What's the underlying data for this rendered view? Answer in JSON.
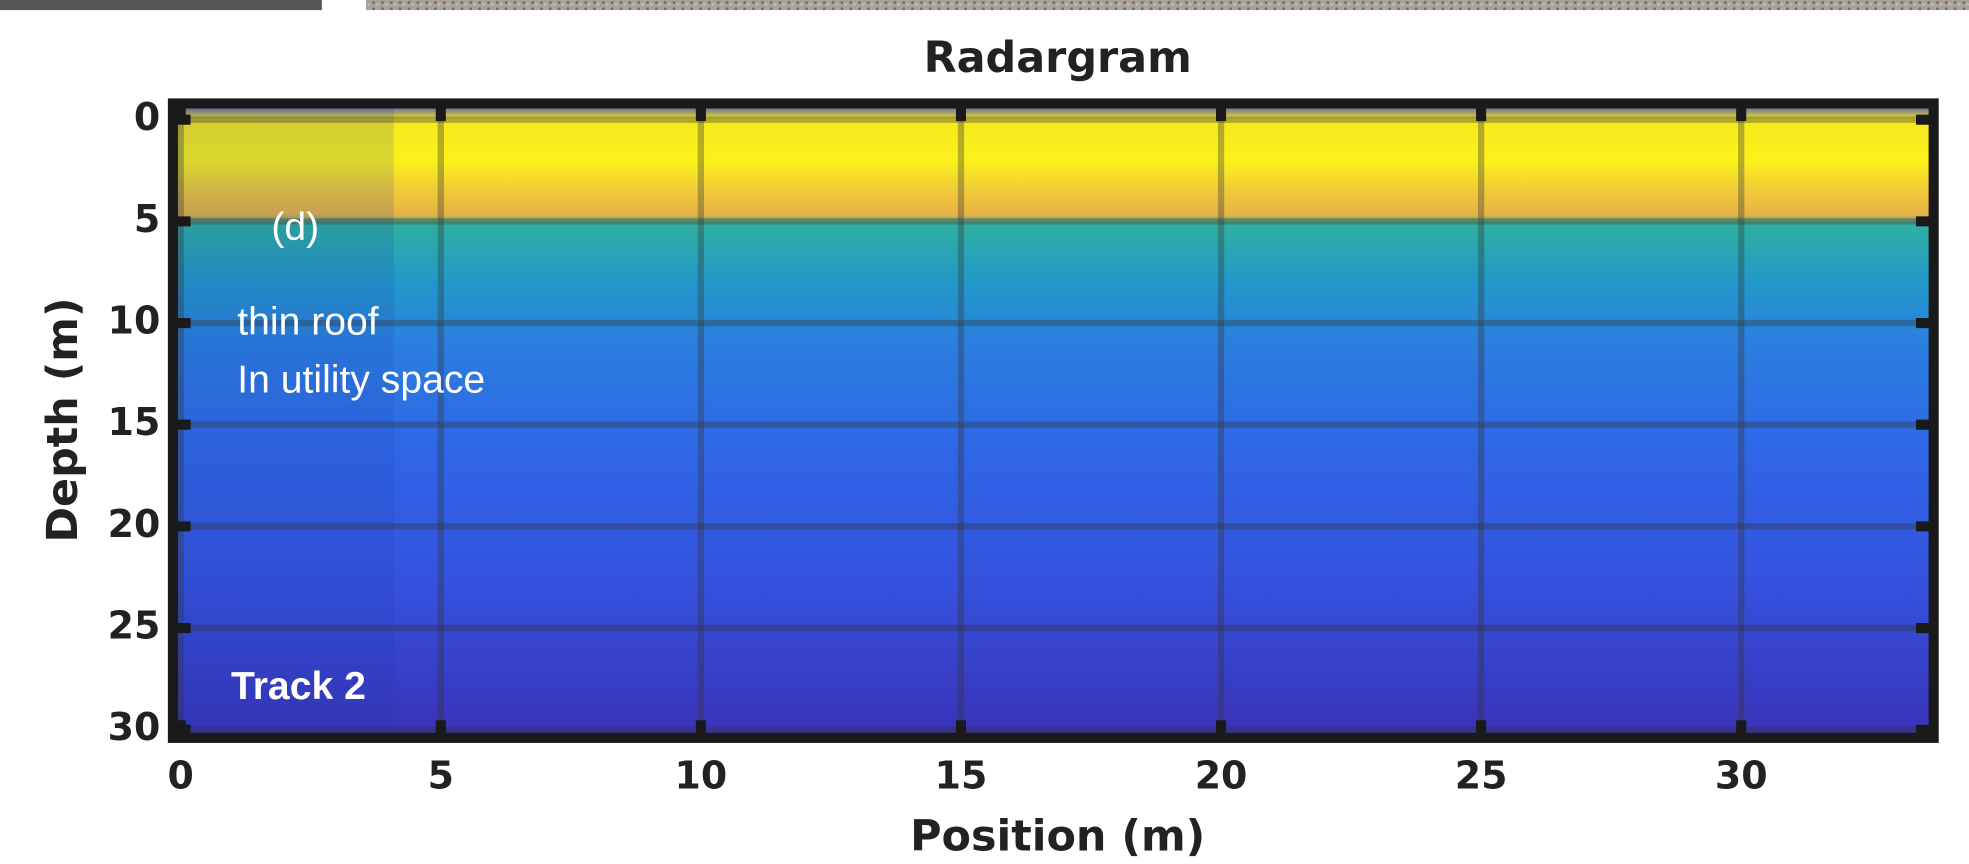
{
  "chart_data": {
    "type": "radargram",
    "title": "Radargram",
    "x_label": "Position (m)",
    "y_label": "Depth (m)",
    "xlim": [
      -0.15,
      33.7
    ],
    "ylim": [
      30.4,
      -0.8
    ],
    "xticks": [
      0,
      5,
      10,
      15,
      20,
      25,
      30
    ],
    "yticks": [
      0,
      5,
      10,
      15,
      20,
      25,
      30
    ],
    "grid": true,
    "annotations": [
      "(d)",
      "thin roof",
      "In utility space",
      "Track 2"
    ]
  }
}
